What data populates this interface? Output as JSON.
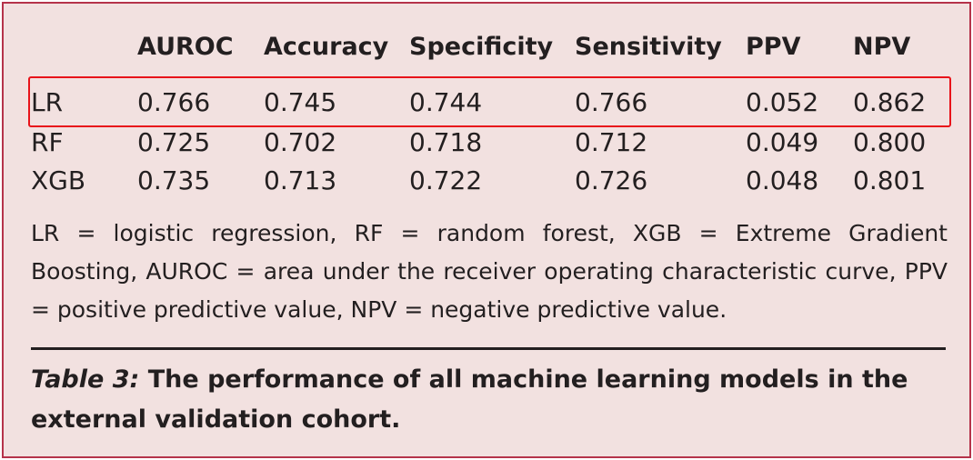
{
  "table": {
    "columns": [
      "",
      "AUROC",
      "Accuracy",
      "Specificity",
      "Sensitivity",
      "PPV",
      "NPV"
    ],
    "rows": [
      {
        "model": "LR",
        "values": [
          "0.766",
          "0.745",
          "0.744",
          "0.766",
          "0.052",
          "0.862"
        ]
      },
      {
        "model": "RF",
        "values": [
          "0.725",
          "0.702",
          "0.718",
          "0.712",
          "0.049",
          "0.800"
        ]
      },
      {
        "model": "XGB",
        "values": [
          "0.735",
          "0.713",
          "0.722",
          "0.726",
          "0.048",
          "0.801"
        ]
      }
    ]
  },
  "footnote": "LR = logistic regression, RF = random forest, XGB = Extreme Gradient Boosting, AUROC = area under the receiver operating characteristic curve, PPV = positive predictive value, NPV = negative predictive value.",
  "caption": {
    "label": "Table 3:",
    "text": " The performance of all machine learning models in the external validation cohort."
  },
  "colors": {
    "background": "#f2e1e0",
    "border": "#b5334a",
    "highlight": "#e8131a",
    "text": "#231f20"
  }
}
